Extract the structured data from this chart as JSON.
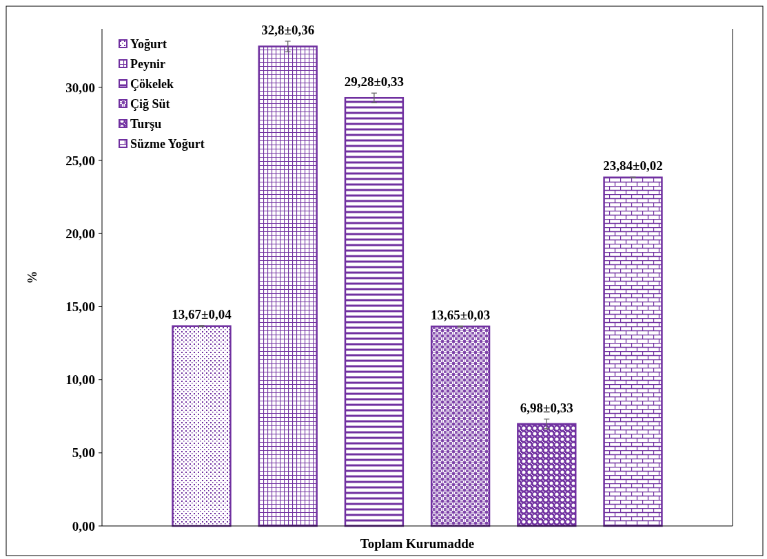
{
  "chart_data": {
    "type": "bar",
    "categories": [
      "Toplam Kurumadde"
    ],
    "ylabel": "%",
    "ylim": [
      0,
      34
    ],
    "yticks": [
      {
        "value": 0,
        "label": "0,00"
      },
      {
        "value": 5,
        "label": "5,00"
      },
      {
        "value": 10,
        "label": "10,00"
      },
      {
        "value": 15,
        "label": "15,00"
      },
      {
        "value": 20,
        "label": "20,00"
      },
      {
        "value": 25,
        "label": "25,00"
      },
      {
        "value": 30,
        "label": "30,00"
      }
    ],
    "legend": "top left",
    "grid": false,
    "series": [
      {
        "name": "Yoğurt",
        "color": "#7030a0",
        "values": [
          13.67
        ],
        "errors": [
          0.04
        ],
        "value_labels": [
          "13,67±0,04"
        ]
      },
      {
        "name": "Peynir",
        "color": "#7030a0",
        "values": [
          32.8
        ],
        "errors": [
          0.36
        ],
        "value_labels": [
          "32,8±0,36"
        ]
      },
      {
        "name": "Çökelek",
        "color": "#7030a0",
        "values": [
          29.28
        ],
        "errors": [
          0.33
        ],
        "value_labels": [
          "29,28±0,33"
        ]
      },
      {
        "name": "Çiğ Süt",
        "color": "#7030a0",
        "values": [
          13.65
        ],
        "errors": [
          0.03
        ],
        "value_labels": [
          "13,65±0,03"
        ]
      },
      {
        "name": "Turşu",
        "color": "#7030a0",
        "values": [
          6.98
        ],
        "errors": [
          0.33
        ],
        "value_labels": [
          "6,98±0,33"
        ]
      },
      {
        "name": "Süzme Yoğurt",
        "color": "#7030a0",
        "values": [
          23.84
        ],
        "errors": [
          0.02
        ],
        "value_labels": [
          "23,84±0,02"
        ]
      }
    ]
  }
}
